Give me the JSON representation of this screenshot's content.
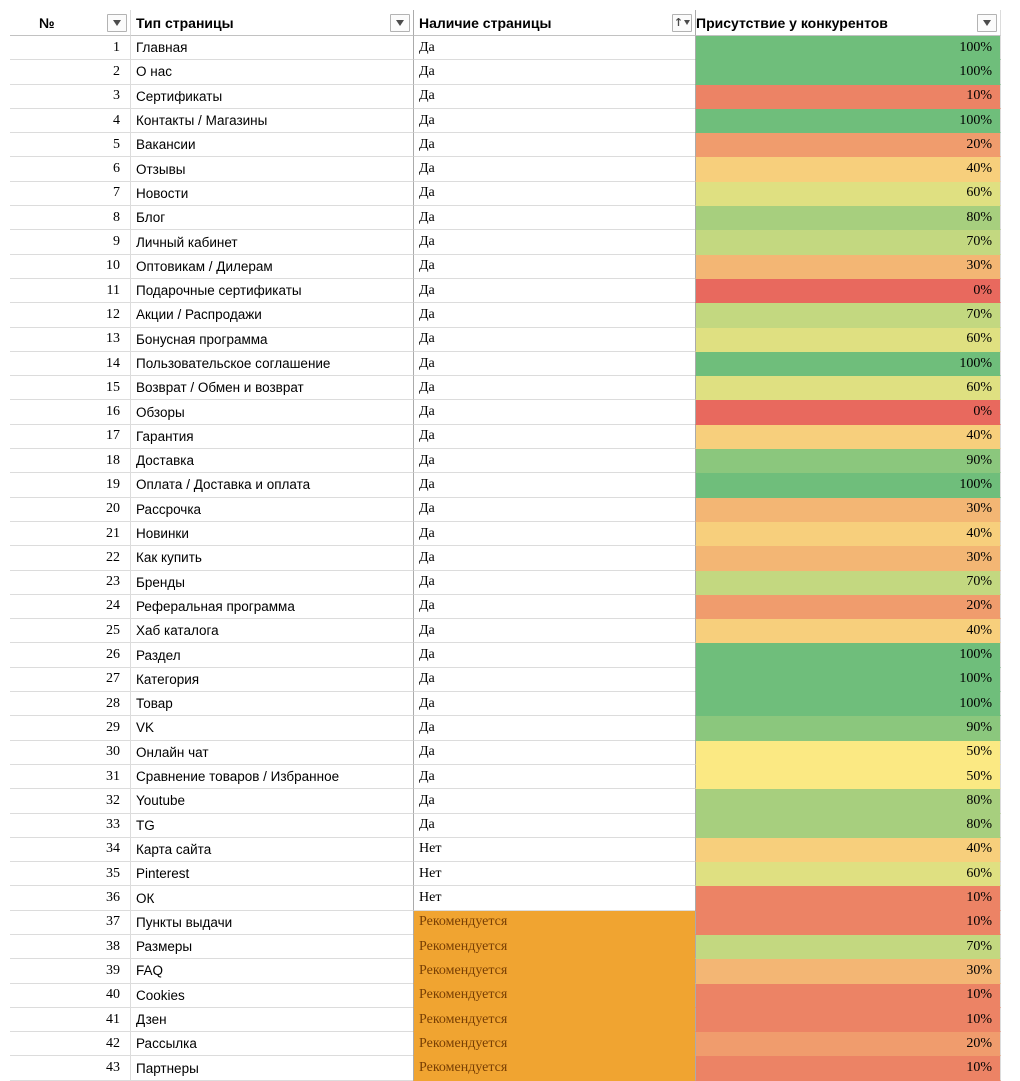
{
  "header": {
    "columns": [
      {
        "label": "№",
        "sorted": false
      },
      {
        "label": "Тип страницы",
        "sorted": false
      },
      {
        "label": "Наличие страницы",
        "sorted": true
      },
      {
        "label": "Присутствие у конкурентов",
        "sorted": false
      }
    ]
  },
  "presence_styles": {
    "recommended_value": "Рекомендуется",
    "recommended_bg": "#F0A431",
    "recommended_text": "#783F04"
  },
  "color_scale": {
    "low": "#E8695E",
    "mid": "#FBE983",
    "high": "#6FBE7B",
    "low_label": "0%",
    "mid_label": "50%",
    "high_label": "100%"
  },
  "rows": [
    {
      "num": "1",
      "type": "Главная",
      "presence": "Да",
      "percent": "100%",
      "color": "#6FBE7B"
    },
    {
      "num": "2",
      "type": "О нас",
      "presence": "Да",
      "percent": "100%",
      "color": "#6FBE7B"
    },
    {
      "num": "3",
      "type": "Сертификаты",
      "presence": "Да",
      "percent": "10%",
      "color": "#EC8365"
    },
    {
      "num": "4",
      "type": "Контакты / Магазины",
      "presence": "Да",
      "percent": "100%",
      "color": "#6FBE7B"
    },
    {
      "num": "5",
      "type": "Вакансии",
      "presence": "Да",
      "percent": "20%",
      "color": "#F09C6D"
    },
    {
      "num": "6",
      "type": "Отзывы",
      "presence": "Да",
      "percent": "40%",
      "color": "#F7CF7C"
    },
    {
      "num": "7",
      "type": "Новости",
      "presence": "Да",
      "percent": "60%",
      "color": "#DFE081"
    },
    {
      "num": "8",
      "type": "Блог",
      "presence": "Да",
      "percent": "80%",
      "color": "#A7CF7E"
    },
    {
      "num": "9",
      "type": "Личный кабинет",
      "presence": "Да",
      "percent": "70%",
      "color": "#C3D880"
    },
    {
      "num": "10",
      "type": "Оптовикам / Дилерам",
      "presence": "Да",
      "percent": "30%",
      "color": "#F3B674"
    },
    {
      "num": "11",
      "type": "Подарочные сертификаты",
      "presence": "Да",
      "percent": "0%",
      "color": "#E8695E"
    },
    {
      "num": "12",
      "type": "Акции / Распродажи",
      "presence": "Да",
      "percent": "70%",
      "color": "#C3D880"
    },
    {
      "num": "13",
      "type": "Бонусная программа",
      "presence": "Да",
      "percent": "60%",
      "color": "#DFE081"
    },
    {
      "num": "14",
      "type": "Пользовательское соглашение",
      "presence": "Да",
      "percent": "100%",
      "color": "#6FBE7B"
    },
    {
      "num": "15",
      "type": "Возврат / Обмен и возврат",
      "presence": "Да",
      "percent": "60%",
      "color": "#DFE081"
    },
    {
      "num": "16",
      "type": "Обзоры",
      "presence": "Да",
      "percent": "0%",
      "color": "#E8695E"
    },
    {
      "num": "17",
      "type": "Гарантия",
      "presence": "Да",
      "percent": "40%",
      "color": "#F7CF7C"
    },
    {
      "num": "18",
      "type": "Доставка",
      "presence": "Да",
      "percent": "90%",
      "color": "#8BC77D"
    },
    {
      "num": "19",
      "type": "Оплата / Доставка и оплата",
      "presence": "Да",
      "percent": "100%",
      "color": "#6FBE7B"
    },
    {
      "num": "20",
      "type": "Рассрочка",
      "presence": "Да",
      "percent": "30%",
      "color": "#F3B674"
    },
    {
      "num": "21",
      "type": "Новинки",
      "presence": "Да",
      "percent": "40%",
      "color": "#F7CF7C"
    },
    {
      "num": "22",
      "type": "Как купить",
      "presence": "Да",
      "percent": "30%",
      "color": "#F3B674"
    },
    {
      "num": "23",
      "type": "Бренды",
      "presence": "Да",
      "percent": "70%",
      "color": "#C3D880"
    },
    {
      "num": "24",
      "type": "Реферальная программа",
      "presence": "Да",
      "percent": "20%",
      "color": "#F09C6D"
    },
    {
      "num": "25",
      "type": "Хаб каталога",
      "presence": "Да",
      "percent": "40%",
      "color": "#F7CF7C"
    },
    {
      "num": "26",
      "type": "Раздел",
      "presence": "Да",
      "percent": "100%",
      "color": "#6FBE7B"
    },
    {
      "num": "27",
      "type": "Категория",
      "presence": "Да",
      "percent": "100%",
      "color": "#6FBE7B"
    },
    {
      "num": "28",
      "type": "Товар",
      "presence": "Да",
      "percent": "100%",
      "color": "#6FBE7B"
    },
    {
      "num": "29",
      "type": "VK",
      "presence": "Да",
      "percent": "90%",
      "color": "#8BC77D"
    },
    {
      "num": "30",
      "type": "Онлайн чат",
      "presence": "Да",
      "percent": "50%",
      "color": "#FBE983"
    },
    {
      "num": "31",
      "type": "Сравнение товаров / Избранное",
      "presence": "Да",
      "percent": "50%",
      "color": "#FBE983"
    },
    {
      "num": "32",
      "type": "Youtube",
      "presence": "Да",
      "percent": "80%",
      "color": "#A7CF7E"
    },
    {
      "num": "33",
      "type": "TG",
      "presence": "Да",
      "percent": "80%",
      "color": "#A7CF7E"
    },
    {
      "num": "34",
      "type": "Карта сайта",
      "presence": "Нет",
      "percent": "40%",
      "color": "#F7CF7C"
    },
    {
      "num": "35",
      "type": "Pinterest",
      "presence": "Нет",
      "percent": "60%",
      "color": "#DFE081"
    },
    {
      "num": "36",
      "type": "ОК",
      "presence": "Нет",
      "percent": "10%",
      "color": "#EC8365"
    },
    {
      "num": "37",
      "type": "Пункты выдачи",
      "presence": "Рекомендуется",
      "percent": "10%",
      "color": "#EC8365"
    },
    {
      "num": "38",
      "type": "Размеры",
      "presence": "Рекомендуется",
      "percent": "70%",
      "color": "#C3D880"
    },
    {
      "num": "39",
      "type": "FAQ",
      "presence": "Рекомендуется",
      "percent": "30%",
      "color": "#F3B674"
    },
    {
      "num": "40",
      "type": "Cookies",
      "presence": "Рекомендуется",
      "percent": "10%",
      "color": "#EC8365"
    },
    {
      "num": "41",
      "type": "Дзен",
      "presence": "Рекомендуется",
      "percent": "10%",
      "color": "#EC8365"
    },
    {
      "num": "42",
      "type": "Рассылка",
      "presence": "Рекомендуется",
      "percent": "20%",
      "color": "#F09C6D"
    },
    {
      "num": "43",
      "type": "Партнеры",
      "presence": "Рекомендуется",
      "percent": "10%",
      "color": "#EC8365"
    }
  ]
}
